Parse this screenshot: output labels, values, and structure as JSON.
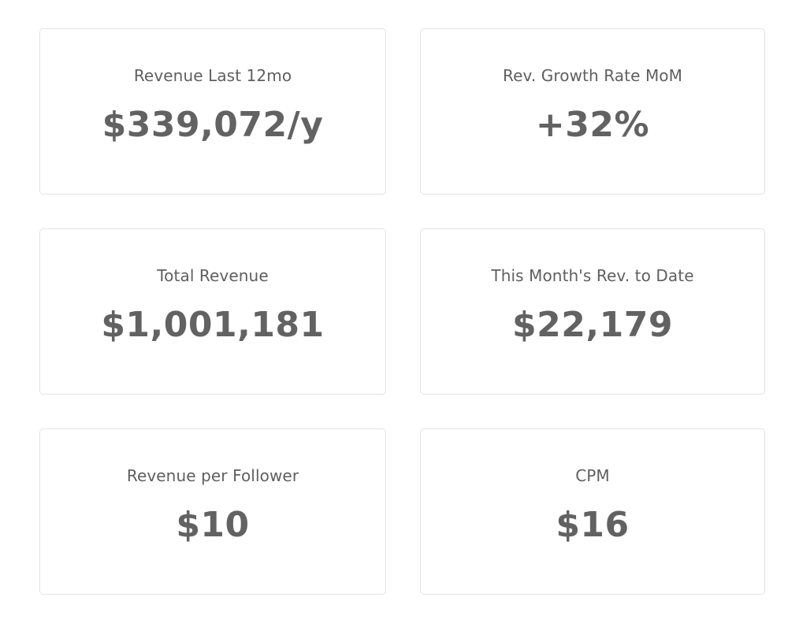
{
  "metrics": [
    {
      "title": "Revenue Last 12mo",
      "value": "$339,072/y"
    },
    {
      "title": "Rev. Growth Rate MoM",
      "value": "+32%"
    },
    {
      "title": "Total Revenue",
      "value": "$1,001,181"
    },
    {
      "title": "This Month's Rev. to Date",
      "value": "$22,179"
    },
    {
      "title": "Revenue per Follower",
      "value": "$10"
    },
    {
      "title": "CPM",
      "value": "$16"
    }
  ]
}
